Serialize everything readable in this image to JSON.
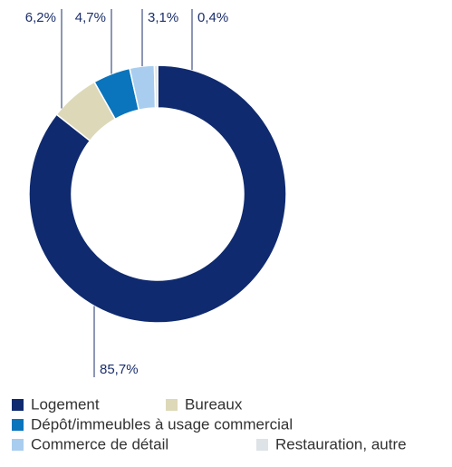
{
  "chart_data": {
    "type": "donut",
    "categories": [
      "Logement",
      "Bureaux",
      "Dépôt/immeubles à usage commercial",
      "Commerce de détail",
      "Restauration, autre"
    ],
    "values": [
      85.7,
      6.2,
      4.7,
      3.1,
      0.4
    ],
    "value_labels": [
      "85,7%",
      "6,2%",
      "4,7%",
      "3,1%",
      "0,4%"
    ],
    "colors": [
      "#0f2a6e",
      "#ddd8b8",
      "#0a74bc",
      "#a9cdee",
      "#dde3e6"
    ]
  }
}
